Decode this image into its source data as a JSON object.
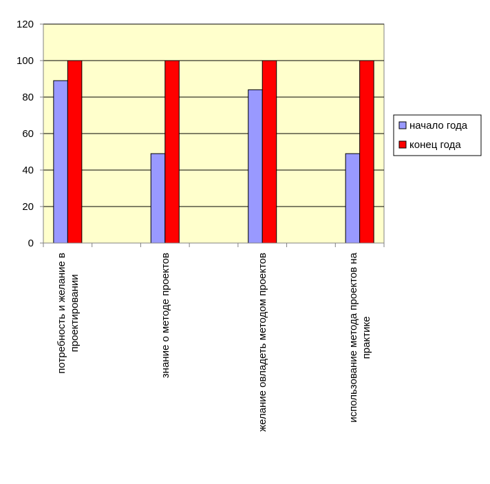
{
  "chart_data": {
    "type": "bar",
    "categories": [
      [
        "потребность и желание в",
        "проектировании"
      ],
      [],
      [
        "знание о методе проектов"
      ],
      [],
      [
        "желание овладеть методом проектов"
      ],
      [],
      [
        "использование метода проектов на",
        "практике"
      ]
    ],
    "series": [
      {
        "name": "начало года",
        "color": "#9999ff",
        "values": [
          89,
          null,
          49,
          null,
          84,
          null,
          49
        ]
      },
      {
        "name": "конец года",
        "color": "#ff0000",
        "values": [
          100,
          null,
          100,
          null,
          100,
          null,
          100
        ]
      }
    ],
    "ylim": [
      0,
      120
    ],
    "yticks": [
      0,
      20,
      40,
      60,
      80,
      100,
      120
    ],
    "grid": true,
    "legend": "right",
    "colors": {
      "plot_background": "#ffffcc",
      "gridline": "#000000",
      "axis": "#808080"
    }
  }
}
